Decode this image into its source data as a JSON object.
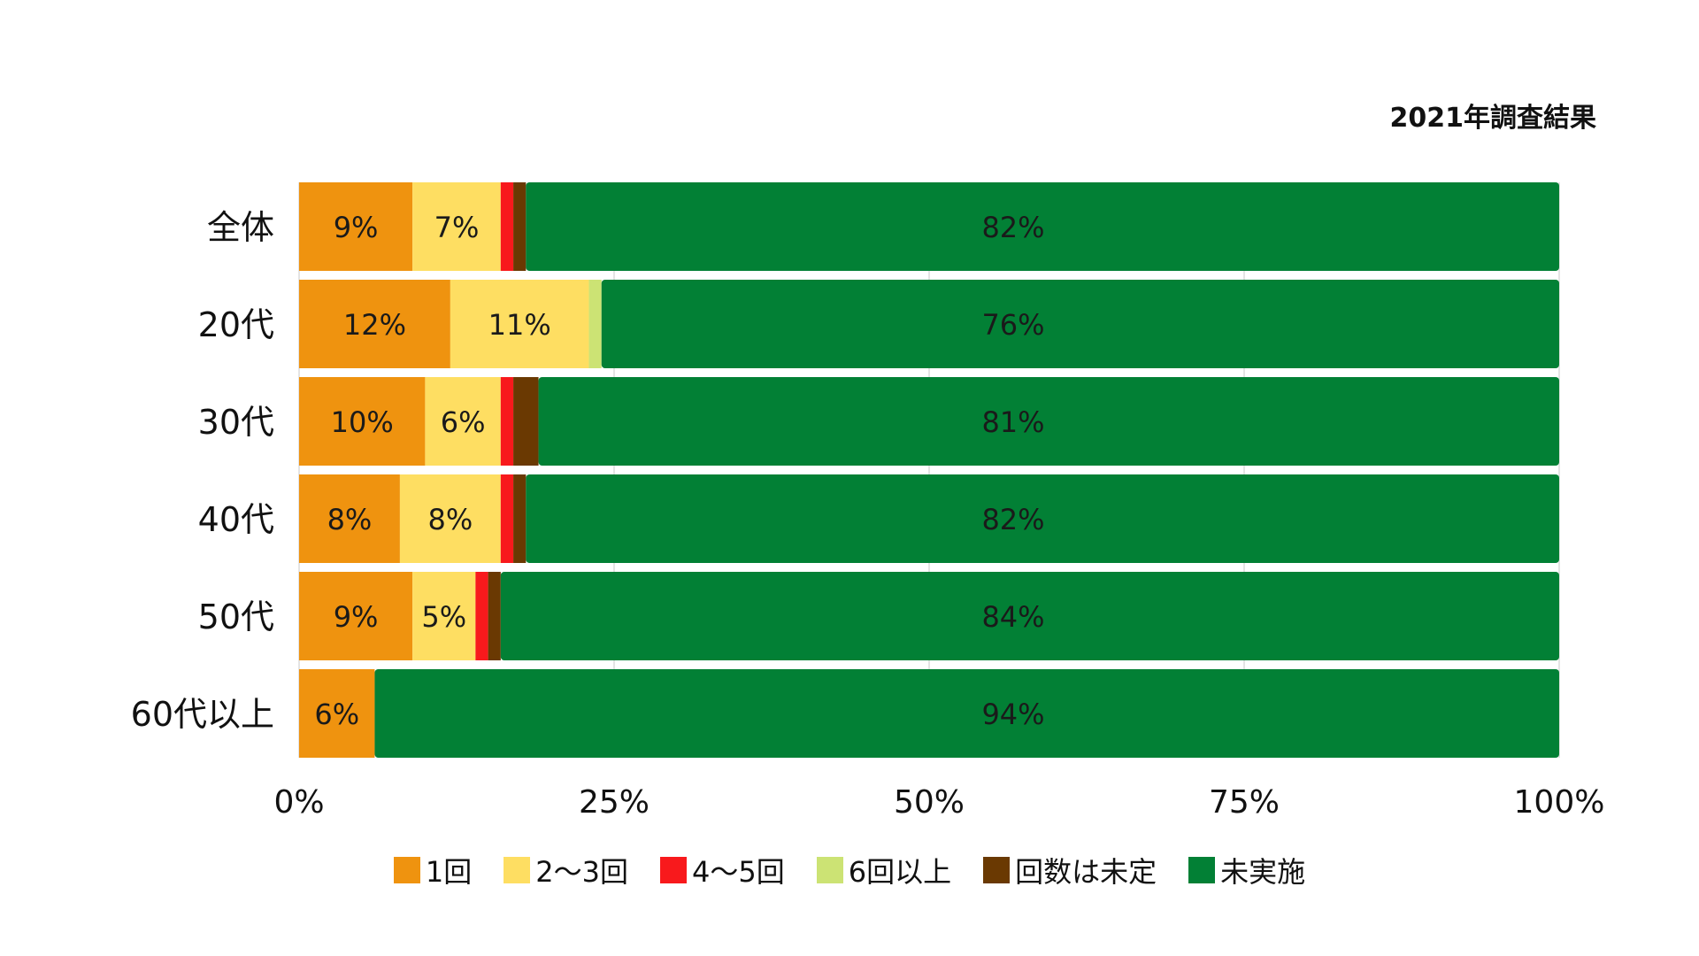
{
  "caption": "2021年調査結果",
  "chart_data": {
    "type": "bar",
    "orientation": "horizontal",
    "stacked": true,
    "title": "",
    "xlabel": "",
    "ylabel": "",
    "xlim": [
      0,
      100
    ],
    "x_ticks": [
      "0%",
      "25%",
      "50%",
      "75%",
      "100%"
    ],
    "x_tick_values": [
      0,
      25,
      50,
      75,
      100
    ],
    "grid": true,
    "legend_position": "bottom",
    "categories": [
      "全体",
      "20代",
      "30代",
      "40代",
      "50代",
      "60代以上"
    ],
    "series": [
      {
        "name": "1回",
        "color": "#EF930F",
        "values": [
          9,
          12,
          10,
          8,
          9,
          6
        ],
        "labels": [
          "9%",
          "12%",
          "10%",
          "8%",
          "9%",
          "6%"
        ]
      },
      {
        "name": "2～3回",
        "color": "#FEDE62",
        "values": [
          7,
          11,
          6,
          8,
          5,
          0
        ],
        "labels": [
          "7%",
          "11%",
          "6%",
          "8%",
          "5%",
          ""
        ]
      },
      {
        "name": "4～5回",
        "color": "#F8191C",
        "values": [
          1,
          0,
          1,
          1,
          1,
          0
        ],
        "labels": [
          "",
          "",
          "",
          "",
          "",
          ""
        ]
      },
      {
        "name": "6回以上",
        "color": "#CCE374",
        "values": [
          0,
          1,
          0,
          0,
          0,
          0
        ],
        "labels": [
          "",
          "",
          "",
          "",
          "",
          ""
        ]
      },
      {
        "name": "回数は未定",
        "color": "#6A3902",
        "values": [
          1,
          0,
          2,
          1,
          1,
          0
        ],
        "labels": [
          "",
          "",
          "",
          "",
          "",
          ""
        ]
      },
      {
        "name": "未実施",
        "color": "#028035",
        "values": [
          82,
          76,
          81,
          82,
          84,
          94
        ],
        "labels": [
          "82%",
          "76%",
          "81%",
          "82%",
          "84%",
          "94%"
        ]
      }
    ]
  }
}
